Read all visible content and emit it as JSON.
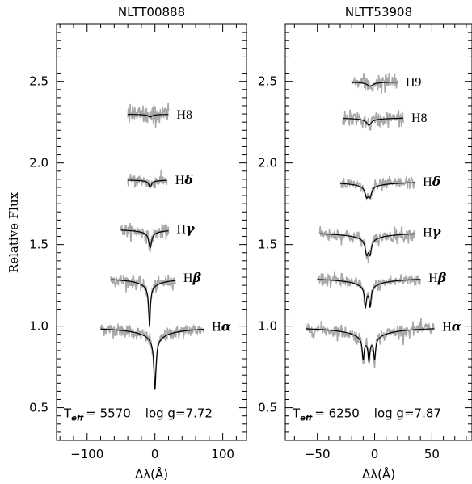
{
  "ylabel": "Relative Flux",
  "chart_data": [
    {
      "type": "line",
      "title": "NLTT00888",
      "xlabel": "Δλ(Å)",
      "ylabel": "Relative Flux",
      "xlim": [
        -145,
        135
      ],
      "ylim": [
        0.3,
        2.85
      ],
      "xticks": [
        "−100",
        "0",
        "100"
      ],
      "yticks": [
        "0.5",
        "1.0",
        "1.5",
        "2.0",
        "2.5"
      ],
      "grid": false,
      "annotation": {
        "Teff": "5570",
        "logg": "7.72"
      },
      "series": [
        {
          "name": "Hα",
          "offset": 1.0,
          "xrange": [
            -80,
            72
          ],
          "depth": 0.39,
          "width": 1.8,
          "noise": 0.02,
          "cores": [
            0
          ]
        },
        {
          "name": "Hβ",
          "offset": 1.3,
          "xrange": [
            -65,
            30
          ],
          "depth": 0.3,
          "width": 1.4,
          "noise": 0.02,
          "cores": [
            -8
          ]
        },
        {
          "name": "Hγ",
          "offset": 1.6,
          "xrange": [
            -50,
            20
          ],
          "depth": 0.12,
          "width": 2.5,
          "noise": 0.02,
          "cores": [
            -7
          ]
        },
        {
          "name": "Hδ",
          "offset": 1.9,
          "xrange": [
            -40,
            18
          ],
          "depth": 0.05,
          "width": 2.2,
          "noise": 0.02,
          "cores": [
            -7
          ]
        },
        {
          "name": "H8",
          "offset": 2.3,
          "xrange": [
            -40,
            20
          ],
          "depth": 0.02,
          "width": 3.0,
          "noise": 0.03,
          "cores": [
            -7
          ]
        }
      ]
    },
    {
      "type": "line",
      "title": "NLTT53908",
      "xlabel": "Δλ(Å)",
      "ylabel": "",
      "xlim": [
        -78,
        85
      ],
      "ylim": [
        0.3,
        2.85
      ],
      "xticks": [
        "−50",
        "0",
        "50"
      ],
      "yticks": [
        "0.5",
        "1.0",
        "1.5",
        "2.0",
        "2.5"
      ],
      "grid": false,
      "annotation": {
        "Teff": "6250",
        "logg": "7.87"
      },
      "series": [
        {
          "name": "Hα",
          "offset": 1.0,
          "xrange": [
            -60,
            52
          ],
          "depth": 0.47,
          "width": 0.9,
          "noise": 0.022,
          "cores": [
            -10,
            -5,
            0
          ]
        },
        {
          "name": "Hβ",
          "offset": 1.3,
          "xrange": [
            -50,
            40
          ],
          "depth": 0.3,
          "width": 1.0,
          "noise": 0.022,
          "cores": [
            -8,
            -4
          ]
        },
        {
          "name": "Hγ",
          "offset": 1.58,
          "xrange": [
            -48,
            35
          ],
          "depth": 0.22,
          "width": 1.4,
          "noise": 0.022,
          "cores": [
            -7,
            -4
          ]
        },
        {
          "name": "Hδ",
          "offset": 1.89,
          "xrange": [
            -30,
            35
          ],
          "depth": 0.15,
          "width": 1.6,
          "noise": 0.02,
          "cores": [
            -7,
            -4
          ]
        },
        {
          "name": "H8",
          "offset": 2.28,
          "xrange": [
            -28,
            25
          ],
          "depth": 0.05,
          "width": 2.5,
          "noise": 0.025,
          "cores": [
            -5
          ]
        },
        {
          "name": "H9",
          "offset": 2.5,
          "xrange": [
            -20,
            20
          ],
          "depth": 0.03,
          "width": 3.0,
          "noise": 0.03,
          "cores": [
            -4
          ]
        }
      ]
    }
  ]
}
